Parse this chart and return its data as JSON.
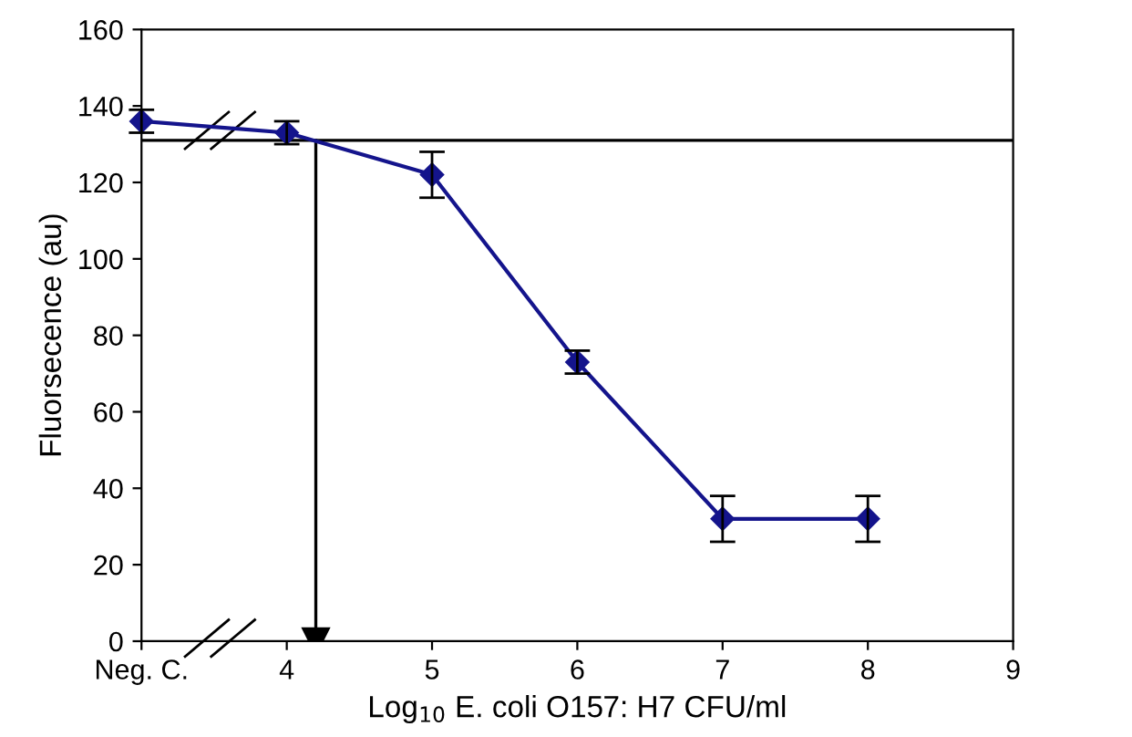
{
  "chart_data": {
    "type": "line",
    "xlabel": "Log$_{10}$ E. coli O157: H7 CFU/ml",
    "ylabel": "Fluorsecence (au)",
    "x": [
      3,
      4,
      5,
      6,
      7,
      8
    ],
    "series": [
      {
        "color": "#14148c",
        "values": [
          136,
          133,
          122,
          73,
          32,
          32
        ],
        "errors": [
          3,
          3,
          6,
          3,
          6,
          6
        ]
      }
    ],
    "xlim": [
      3,
      9
    ],
    "xticks": [
      {
        "value": 3,
        "label": "Neg. C."
      },
      4,
      5,
      6,
      7,
      8,
      9
    ],
    "ylim": [
      0,
      160
    ],
    "yticks": [
      0,
      20,
      40,
      60,
      80,
      100,
      120,
      140,
      160
    ],
    "ref_lines": [
      {
        "axis": "y",
        "value": 131,
        "color": "#000000"
      },
      {
        "axis": "x",
        "value": 4.2,
        "color": "#000000"
      }
    ],
    "marker": "diamond",
    "line_style": "solid",
    "grid": false,
    "legend": false
  }
}
